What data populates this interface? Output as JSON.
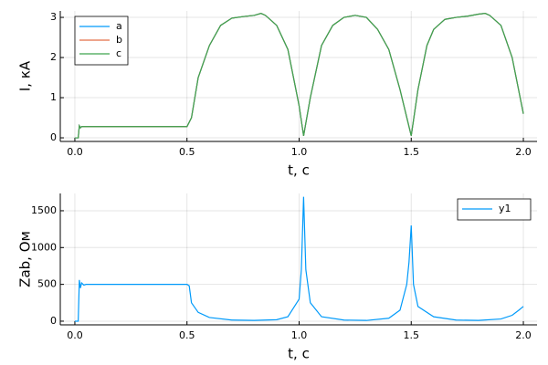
{
  "chart_data": [
    {
      "type": "line",
      "xlabel": "t, с",
      "ylabel": "I, кА",
      "grid": true,
      "legend": "top-left",
      "xlim": [
        -0.065,
        2.061
      ],
      "ylim": [
        -0.09,
        3.16
      ],
      "xticks": [
        {
          "value": 0,
          "label": "0.0"
        },
        0.5,
        {
          "value": 1,
          "label": "1.0"
        },
        1.5,
        {
          "value": 2,
          "label": "2.0"
        }
      ],
      "yticks": [
        0,
        1,
        2,
        3
      ],
      "x": [
        0,
        0.015,
        0.02,
        0.025,
        0.03,
        0.05,
        0.5,
        0.52,
        0.55,
        0.6,
        0.65,
        0.7,
        0.75,
        0.8,
        0.83,
        0.85,
        0.9,
        0.95,
        1.0,
        1.02,
        1.05,
        1.1,
        1.15,
        1.2,
        1.25,
        1.3,
        1.35,
        1.4,
        1.45,
        1.5,
        1.53,
        1.57,
        1.6,
        1.65,
        1.7,
        1.75,
        1.8,
        1.83,
        1.85,
        1.9,
        1.95,
        2.0
      ],
      "series": [
        {
          "name": "a",
          "color": "#009afa",
          "values": [
            0,
            0,
            0.3,
            0.25,
            0.28,
            0.28,
            0.28,
            0.5,
            1.5,
            2.3,
            2.8,
            2.98,
            3.02,
            3.05,
            3.1,
            3.05,
            2.8,
            2.2,
            0.8,
            0.05,
            1.0,
            2.3,
            2.8,
            3.0,
            3.05,
            3.0,
            2.7,
            2.2,
            1.2,
            0.05,
            1.2,
            2.3,
            2.7,
            2.95,
            3.0,
            3.03,
            3.08,
            3.1,
            3.05,
            2.8,
            2.0,
            0.6
          ]
        },
        {
          "name": "b",
          "color": "#e36f47",
          "values": [
            0,
            0,
            0.3,
            0.25,
            0.28,
            0.28,
            0.28,
            0.5,
            1.5,
            2.3,
            2.8,
            2.98,
            3.02,
            3.05,
            3.1,
            3.05,
            2.8,
            2.2,
            0.8,
            0.05,
            1.0,
            2.3,
            2.8,
            3.0,
            3.05,
            3.0,
            2.7,
            2.2,
            1.2,
            0.05,
            1.2,
            2.3,
            2.7,
            2.95,
            3.0,
            3.03,
            3.08,
            3.1,
            3.05,
            2.8,
            2.0,
            0.6
          ]
        },
        {
          "name": "c",
          "color": "#3ea44e",
          "values": [
            0,
            0,
            0.3,
            0.25,
            0.28,
            0.28,
            0.28,
            0.5,
            1.5,
            2.3,
            2.8,
            2.98,
            3.02,
            3.05,
            3.1,
            3.05,
            2.8,
            2.2,
            0.8,
            0.05,
            1.0,
            2.3,
            2.8,
            3.0,
            3.05,
            3.0,
            2.7,
            2.2,
            1.2,
            0.05,
            1.2,
            2.3,
            2.7,
            2.95,
            3.0,
            3.03,
            3.08,
            3.1,
            3.05,
            2.8,
            2.0,
            0.6
          ]
        }
      ]
    },
    {
      "type": "line",
      "xlabel": "t, с",
      "ylabel": "Zab, Ом",
      "grid": true,
      "legend": "top-right",
      "xlim": [
        -0.065,
        2.061
      ],
      "ylim": [
        -50,
        1735
      ],
      "xticks": [
        {
          "value": 0,
          "label": "0.0"
        },
        0.5,
        {
          "value": 1,
          "label": "1.0"
        },
        1.5,
        {
          "value": 2,
          "label": "2.0"
        }
      ],
      "yticks": [
        0,
        500,
        1000,
        1500
      ],
      "x": [
        0,
        0.015,
        0.02,
        0.025,
        0.03,
        0.04,
        0.05,
        0.5,
        0.51,
        0.52,
        0.55,
        0.6,
        0.7,
        0.8,
        0.9,
        0.95,
        1.0,
        1.01,
        1.02,
        1.03,
        1.05,
        1.1,
        1.2,
        1.3,
        1.4,
        1.45,
        1.48,
        1.49,
        1.5,
        1.51,
        1.53,
        1.6,
        1.7,
        1.8,
        1.9,
        1.95,
        1.98,
        2.0
      ],
      "series": [
        {
          "name": "y1",
          "color": "#009afa",
          "values": [
            0,
            0,
            560,
            450,
            520,
            490,
            500,
            500,
            480,
            250,
            120,
            50,
            15,
            10,
            20,
            60,
            300,
            700,
            1690,
            700,
            250,
            60,
            15,
            10,
            40,
            150,
            500,
            800,
            1300,
            500,
            200,
            60,
            15,
            10,
            30,
            80,
            150,
            200
          ]
        }
      ]
    }
  ]
}
